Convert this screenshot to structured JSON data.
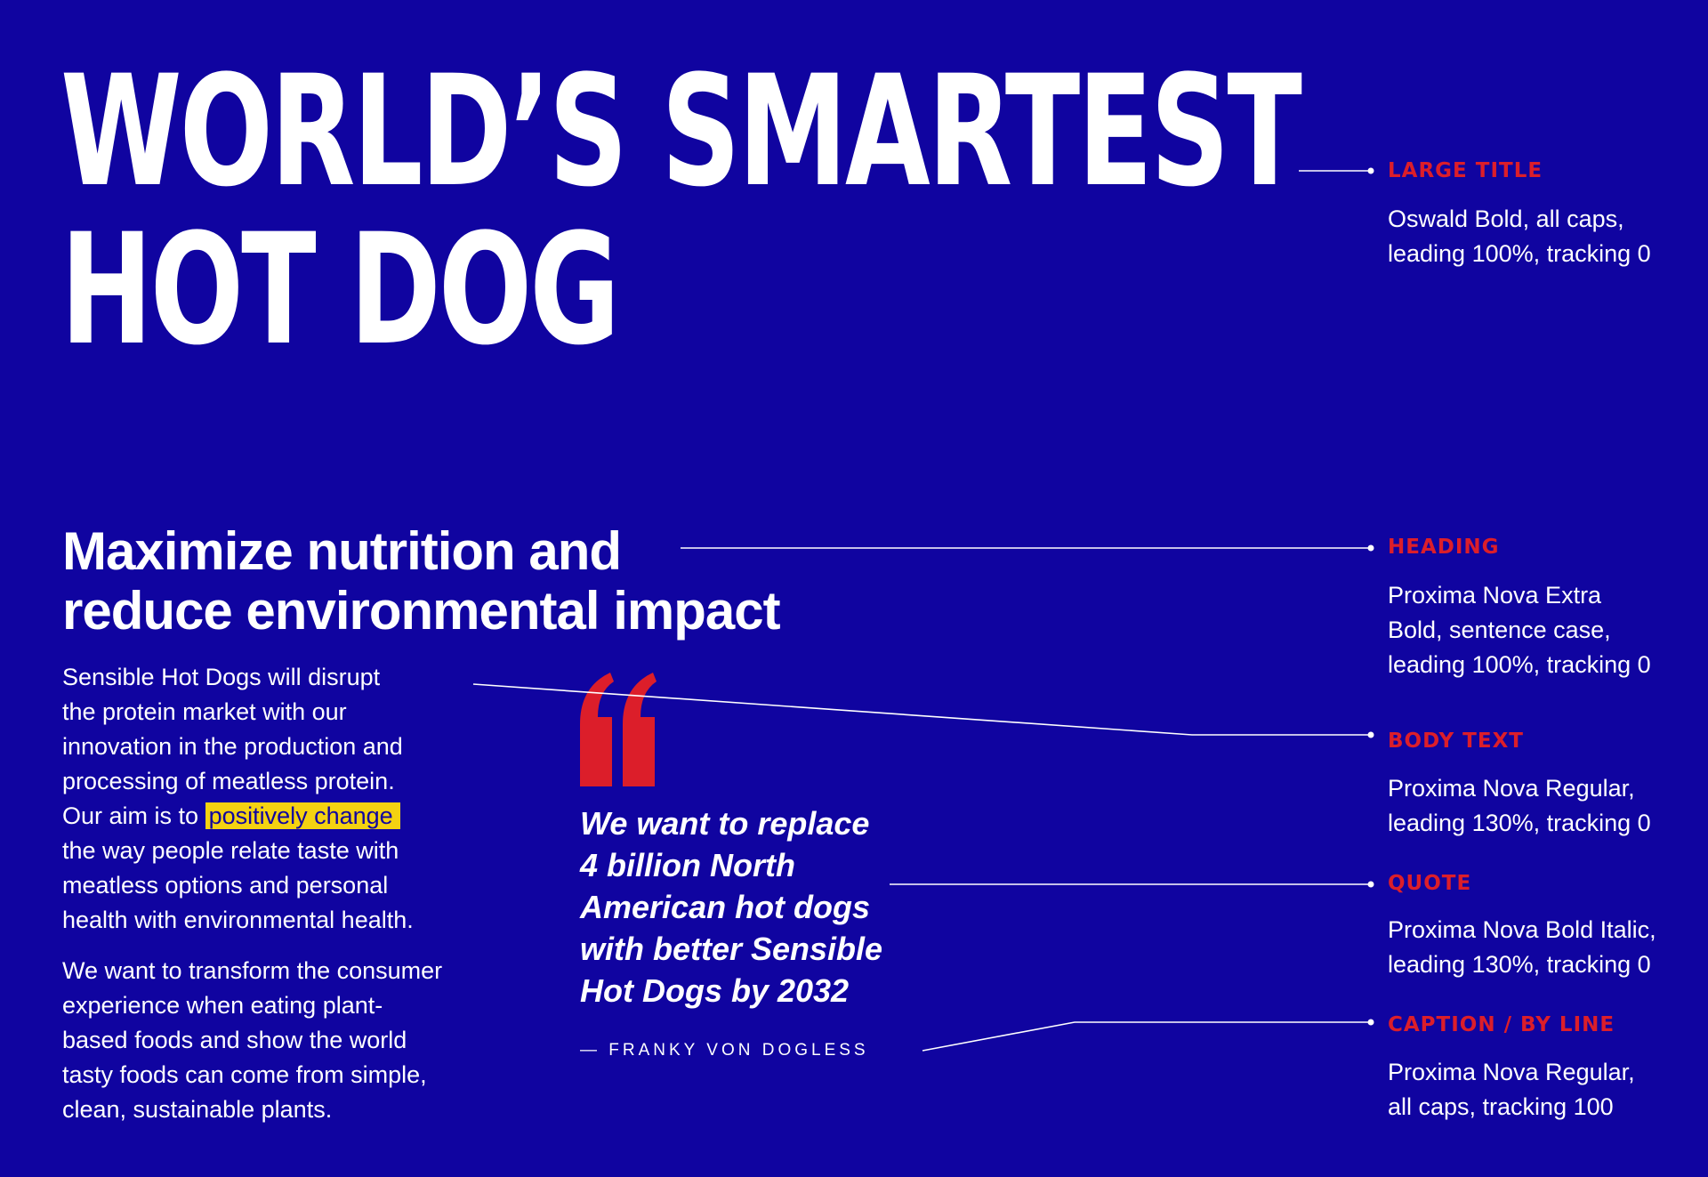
{
  "colors": {
    "background": "#1004a0",
    "text": "#ffffff",
    "accent_red": "#dc1e2a",
    "highlight_yellow": "#f4d211"
  },
  "title": {
    "line1": "WORLD’S SMARTEST",
    "line2": "HOT DOG"
  },
  "heading": {
    "line1": "Maximize nutrition and",
    "line2": "reduce environmental impact"
  },
  "body": {
    "p1": {
      "line1": "Sensible Hot Dogs will disrupt",
      "line2": "the protein market with our",
      "line3": "innovation in the production and",
      "line4": "processing of meatless protein.",
      "line5_before": "Our aim is to",
      "highlight": "positively change",
      "line6": "the way people relate taste with",
      "line7": "meatless options and personal",
      "line8": "health with environmental health."
    },
    "p2": {
      "line1": "We want to transform the consumer",
      "line2": "experience when eating plant-",
      "line3": "based foods and show the world",
      "line4": "tasty foods can come from simple,",
      "line5": "clean, sustainable plants."
    }
  },
  "quote": {
    "icon": "quote-mark-icon",
    "line1": "We want to replace",
    "line2": "4 billion North",
    "line3": "American hot dogs",
    "line4": "with better Sensible",
    "line5": "Hot Dogs by 2032",
    "byline": "— FRANKY VON DOGLESS"
  },
  "annotations": [
    {
      "label": "LARGE TITLE",
      "desc": [
        "Oswald Bold, all caps,",
        "leading 100%, tracking 0"
      ]
    },
    {
      "label": "HEADING",
      "desc": [
        "Proxima Nova Extra",
        "Bold, sentence case,",
        "leading 100%, tracking 0"
      ]
    },
    {
      "label": "BODY TEXT",
      "desc": [
        "Proxima Nova Regular,",
        "leading 130%, tracking 0"
      ]
    },
    {
      "label": "QUOTE",
      "desc": [
        "Proxima Nova Bold Italic,",
        "leading 130%, tracking 0"
      ]
    },
    {
      "label": "CAPTION / BY LINE",
      "desc": [
        "Proxima Nova Regular,",
        "all caps, tracking 100"
      ]
    }
  ]
}
